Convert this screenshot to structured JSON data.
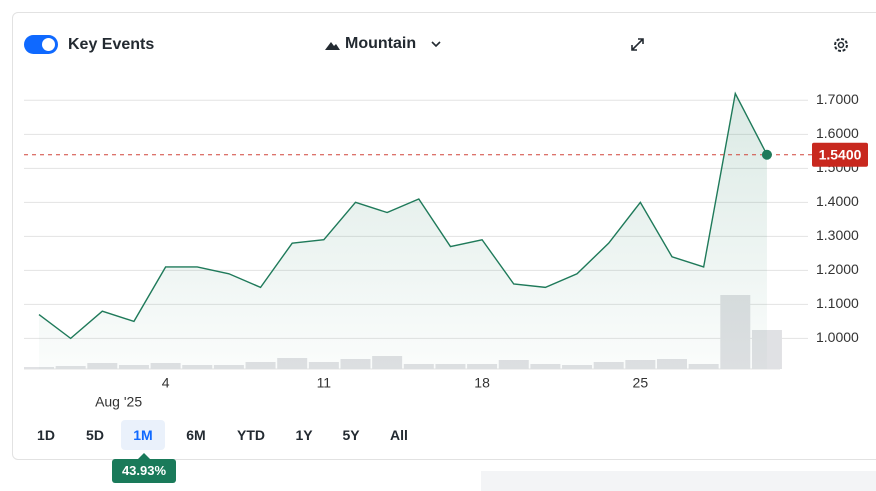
{
  "toolbar": {
    "toggle_label": "Key Events",
    "chart_style": "Mountain"
  },
  "chart_data": {
    "type": "mountain",
    "categories": [
      null,
      null,
      null,
      null,
      "4",
      null,
      null,
      null,
      null,
      "11",
      null,
      null,
      null,
      null,
      "18",
      null,
      null,
      null,
      null,
      "25",
      null,
      null,
      null,
      null
    ],
    "x_sublabel": "Aug '25",
    "values": [
      1.07,
      1.0,
      1.08,
      1.05,
      1.21,
      1.21,
      1.19,
      1.15,
      1.28,
      1.29,
      1.4,
      1.37,
      1.41,
      1.27,
      1.29,
      1.16,
      1.15,
      1.19,
      1.28,
      1.4,
      1.24,
      1.21,
      1.72,
      1.54
    ],
    "volume": [
      2,
      3,
      6,
      4,
      6,
      4,
      4,
      7,
      11,
      7,
      10,
      13,
      5,
      5,
      5,
      9,
      5,
      4,
      7,
      9,
      10,
      5,
      74,
      39
    ],
    "color": "#1f7a5a",
    "ylim": [
      0.91,
      1.745
    ],
    "yticks": [
      {
        "value": 1.0,
        "label": "1.0000"
      },
      {
        "value": 1.1,
        "label": "1.1000"
      },
      {
        "value": 1.2,
        "label": "1.2000"
      },
      {
        "value": 1.3,
        "label": "1.3000"
      },
      {
        "value": 1.4,
        "label": "1.4000"
      },
      {
        "value": 1.5,
        "label": "1.5000"
      },
      {
        "value": 1.6,
        "label": "1.6000"
      },
      {
        "value": 1.7,
        "label": "1.7000"
      }
    ],
    "grid": true,
    "last_value": 1.54,
    "last_value_label": "1.5400"
  },
  "ranges": [
    "1D",
    "5D",
    "1M",
    "6M",
    "YTD",
    "1Y",
    "5Y",
    "All"
  ],
  "period_change_label": "43.93%"
}
